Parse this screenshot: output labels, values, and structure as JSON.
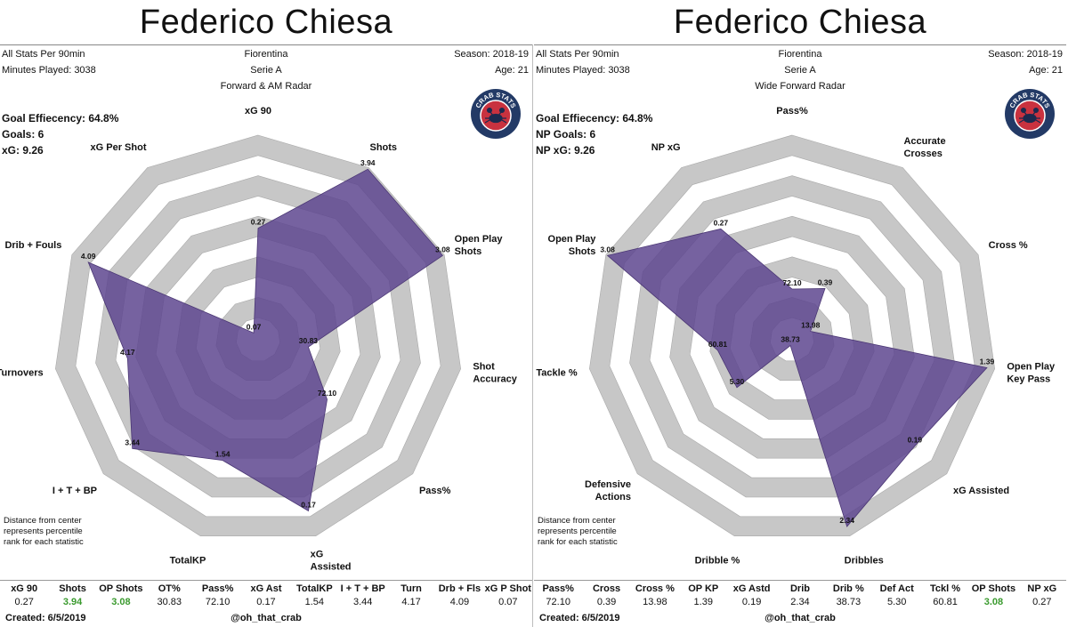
{
  "colors": {
    "poly": "#5e468f",
    "ring_gray": "#c7c7c7",
    "ring_white": "#ffffff",
    "logo_outer": "#233a66",
    "logo_inner": "#c9323f",
    "highlight": "#3a9a2e"
  },
  "logo": {
    "text": "CRAB STATS",
    "icon": "crab-icon"
  },
  "panels": [
    {
      "title": "Federico Chiesa",
      "meta_left": [
        "All Stats Per 90min",
        "Minutes Played: 3038"
      ],
      "meta_center": [
        "Fiorentina",
        "Serie A",
        "Forward & AM Radar"
      ],
      "meta_right": [
        "Season: 2018-19",
        "Age: 21"
      ],
      "goal_lines": [
        "Goal Effiecency: 64.8%",
        "Goals: 6",
        "xG: 9.26"
      ],
      "note": [
        "Distance from center",
        "represents percentile",
        "rank for each statistic"
      ],
      "stats_headers": [
        "xG 90",
        "Shots",
        "OP Shots",
        "OT%",
        "Pass%",
        "xG Ast",
        "TotalKP",
        "I + T + BP",
        "Turn",
        "Drb + Fls",
        "xG P Shot"
      ],
      "stats_values": [
        "0.27",
        "3.94",
        "3.08",
        "30.83",
        "72.10",
        "0.17",
        "1.54",
        "3.44",
        "4.17",
        "4.09",
        "0.07"
      ],
      "highlight_indices": [
        1,
        2
      ],
      "created": "Created:  6/5/2019",
      "handle": "@oh_that_crab"
    },
    {
      "title": "Federico Chiesa",
      "meta_left": [
        "All Stats Per 90min",
        "Minutes Played: 3038"
      ],
      "meta_center": [
        "Fiorentina",
        "Serie A",
        "Wide Forward Radar"
      ],
      "meta_right": [
        "Season: 2018-19",
        "Age: 21"
      ],
      "goal_lines": [
        "Goal Effiecency: 64.8%",
        "NP Goals: 6",
        "NP xG: 9.26"
      ],
      "note": [
        "Distance from center",
        "represents percentile",
        "rank for each statistic"
      ],
      "stats_headers": [
        "Pass%",
        "Cross",
        "Cross %",
        "OP KP",
        "xG Astd",
        "Drib",
        "Drib %",
        "Def Act",
        "Tckl %",
        "OP Shots",
        "NP xG"
      ],
      "stats_values": [
        "72.10",
        "0.39",
        "13.98",
        "1.39",
        "0.19",
        "2.34",
        "38.73",
        "5.30",
        "60.81",
        "3.08",
        "0.27"
      ],
      "highlight_indices": [
        9
      ],
      "created": "Created:  6/5/2019",
      "handle": "@oh_that_crab"
    }
  ],
  "chart_data": [
    {
      "type": "radar",
      "title": "Forward & AM Radar",
      "scale": "percentile rank (0-100)",
      "axes": [
        {
          "label": [
            "xG 90"
          ],
          "value_label": "0.27",
          "percentile": 55
        },
        {
          "label": [
            "Shots"
          ],
          "value_label": "3.94",
          "percentile": 100
        },
        {
          "label": [
            "Open Play",
            "Shots"
          ],
          "value_label": "3.08",
          "percentile": 100
        },
        {
          "label": [
            "Shot",
            "Accuracy"
          ],
          "value_label": "30.83",
          "percentile": 25
        },
        {
          "label": [
            "Pass%"
          ],
          "value_label": "72.10",
          "percentile": 45
        },
        {
          "label": [
            "xG",
            "Assisted"
          ],
          "value_label": "0.17",
          "percentile": 88
        },
        {
          "label": [
            "TotalKP"
          ],
          "value_label": "1.54",
          "percentile": 62
        },
        {
          "label": [
            "I + T + BP"
          ],
          "value_label": "3.44",
          "percentile": 82
        },
        {
          "label": [
            "Turnovers"
          ],
          "value_label": "4.17",
          "percentile": 65
        },
        {
          "label": [
            "Drib + Fouls"
          ],
          "value_label": "4.09",
          "percentile": 92
        },
        {
          "label": [
            "xG Per Shot"
          ],
          "value_label": "0.07",
          "percentile": 4
        }
      ]
    },
    {
      "type": "radar",
      "title": "Wide Forward Radar",
      "scale": "percentile rank (0-100)",
      "axes": [
        {
          "label": [
            "Pass%"
          ],
          "value_label": "72.10",
          "percentile": 25
        },
        {
          "label": [
            "Accurate",
            "Crosses"
          ],
          "value_label": "0.39",
          "percentile": 30
        },
        {
          "label": [
            "Cross %"
          ],
          "value_label": "13.98",
          "percentile": 10
        },
        {
          "label": [
            "Open Play",
            "Key Pass"
          ],
          "value_label": "1.39",
          "percentile": 97
        },
        {
          "label": [
            "xG Assisted"
          ],
          "value_label": "0.19",
          "percentile": 80
        },
        {
          "label": [
            "Dribbles"
          ],
          "value_label": "2.34",
          "percentile": 96
        },
        {
          "label": [
            "Dribble %"
          ],
          "value_label": "38.73",
          "percentile": 3
        },
        {
          "label": [
            "Defensive",
            "Actions"
          ],
          "value_label": "5.30",
          "percentile": 36
        },
        {
          "label": [
            "Tackle %"
          ],
          "value_label": "60.81",
          "percentile": 37
        },
        {
          "label": [
            "Open Play",
            "Shots"
          ],
          "value_label": "3.08",
          "percentile": 100
        },
        {
          "label": [
            "NP xG"
          ],
          "value_label": "0.27",
          "percentile": 65
        }
      ]
    }
  ]
}
